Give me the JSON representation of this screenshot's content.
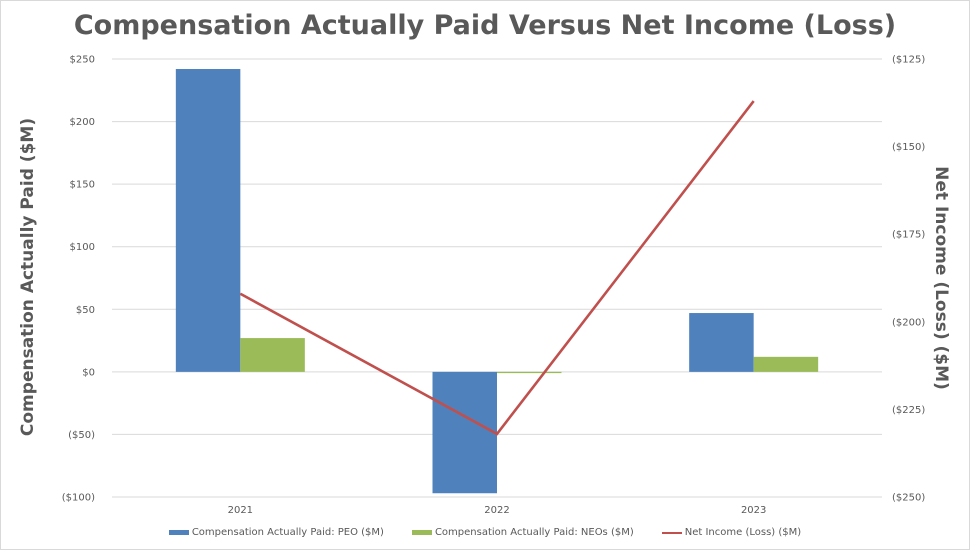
{
  "chart_data": {
    "type": "bar+line",
    "title": "Compensation Actually Paid Versus Net Income (Loss)",
    "categories": [
      "2021",
      "2022",
      "2023"
    ],
    "series": [
      {
        "name": "Compensation Actually Paid: PEO ($M)",
        "type": "bar",
        "axis": "left",
        "color": "#4f81bd",
        "values": [
          242,
          -97,
          47
        ]
      },
      {
        "name": "Compensation Actually Paid: NEOs ($M)",
        "type": "bar",
        "axis": "left",
        "color": "#9bbb59",
        "values": [
          27,
          -1,
          12
        ]
      },
      {
        "name": "Net Income (Loss) ($M)",
        "type": "line",
        "axis": "right",
        "color": "#c0504d",
        "values": [
          -192,
          -232,
          -137
        ]
      }
    ],
    "ylabel": "Compensation Actually Paid ($M)",
    "ylabel_right": "Net Income (Loss) ($M)",
    "xlabel": "",
    "ylim": [
      -100,
      250
    ],
    "ylim_right": [
      -250,
      -125
    ],
    "yticks": [
      250,
      200,
      150,
      100,
      50,
      0,
      -50,
      -100
    ],
    "ytick_labels": [
      "$250",
      "$200",
      "$150",
      "$100",
      "$50",
      "$0",
      "($50)",
      "($100)"
    ],
    "yticks_right": [
      -125,
      -150,
      -175,
      -200,
      -225,
      -250
    ],
    "ytick_labels_right": [
      "($125)",
      "($150)",
      "($175)",
      "($200)",
      "($225)",
      "($250)"
    ],
    "grid": true,
    "legend_position": "bottom"
  }
}
